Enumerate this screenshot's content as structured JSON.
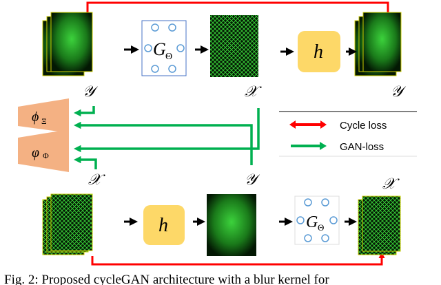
{
  "labels": {
    "y_top_left": "𝒴",
    "x_top_mid": "𝒳",
    "y_top_right": "𝒴",
    "x_bot_left": "𝒳",
    "y_bot_mid": "𝒴",
    "x_bot_right": "𝒳",
    "generator": "G",
    "generator_sub": "Θ",
    "blur_kernel": "h",
    "disc1": "ϕ",
    "disc1_sub": "Ξ",
    "disc2": "φ",
    "disc2_sub": "Φ"
  },
  "legend": {
    "cycle": "Cycle loss",
    "gan": "GAN-loss"
  },
  "colors": {
    "cycle": "#ff0000",
    "gan": "#00b050",
    "kernel": "#fdd868",
    "disc": "#f4b183",
    "micro": "#1fa01f"
  },
  "caption": "Fig. 2: Proposed cycleGAN architecture with a blur kernel for"
}
